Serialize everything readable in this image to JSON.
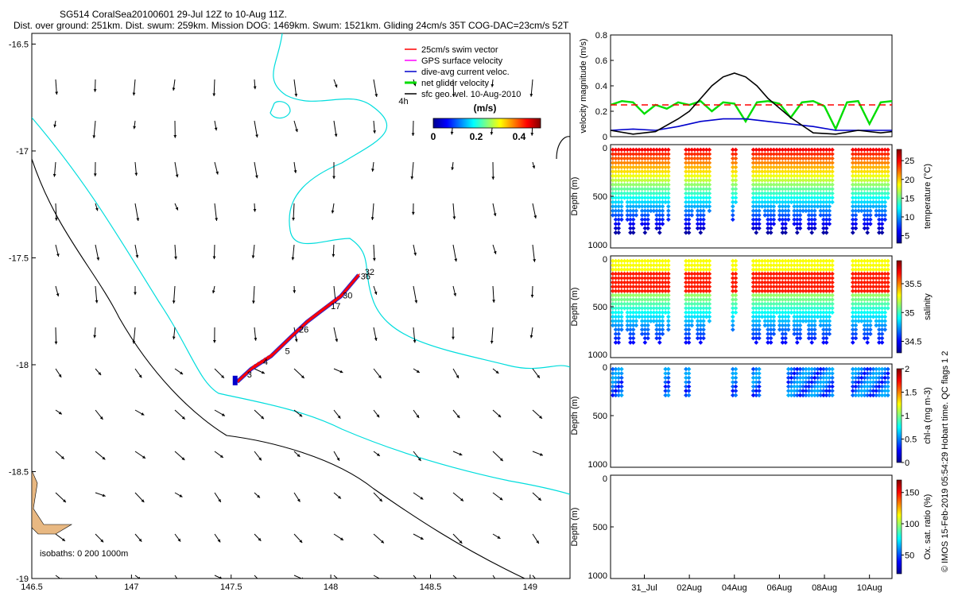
{
  "header": {
    "line1": "SG514 CoralSea20100601 29-Jul 12Z to 10-Aug 11Z.",
    "line2": "Dist. over ground: 251km. Dist. swum: 259km. Mission DOG: 1469km. Swum: 1521km. Gliding 24cm/s 35T COG-DAC=23cm/s 52T"
  },
  "side_text": "© IMOS 15-Feb-2019 05:54:29 Hobart time. QC flags 1  2",
  "colors": {
    "swim": "#ff0000",
    "gps": "#ff00ff",
    "dac": "#0000cc",
    "net": "#00dd00",
    "sfc": "#000000",
    "isobath200": "#00dddd",
    "isobath1000": "#000000",
    "land": "#e8b882"
  },
  "chart_data": [
    {
      "type": "map",
      "x_ticks": [
        146.5,
        147,
        147.5,
        148,
        148.5,
        149
      ],
      "x_tick_labels": [
        "146.5",
        "147",
        "147.5",
        "148",
        "148.5",
        "149"
      ],
      "y_ticks": [
        -16.5,
        -17,
        -17.5,
        -18,
        -18.5,
        -19
      ],
      "y_tick_labels": [
        "-16.5",
        "-17",
        "-17.5",
        "-18",
        "-18.5",
        "-19"
      ],
      "xlim": [
        146.5,
        149.2
      ],
      "ylim": [
        -19,
        -16.45
      ],
      "legend": [
        {
          "label": "25cm/s swim vector",
          "color": "#ff0000"
        },
        {
          "label": "GPS surface velocity",
          "color": "#ff00ff"
        },
        {
          "label": "dive-avg current veloc.",
          "color": "#0000cc"
        },
        {
          "label": "net glider velocity",
          "color": "#00dd00"
        },
        {
          "label": "sfc geo. vel. 10-Aug-2010",
          "color": "#000000"
        }
      ],
      "legend_placement": "top-right",
      "colorbar": {
        "title": "(m/s)",
        "ticks": [
          "0",
          "0.2",
          "0.4"
        ],
        "range": [
          0,
          0.5
        ]
      },
      "isobath_note": "isobaths: 0   200  1000m",
      "track": [
        [
          147.53,
          -18.08
        ],
        [
          147.6,
          -18.02
        ],
        [
          147.7,
          -17.96
        ],
        [
          147.8,
          -17.87
        ],
        [
          147.88,
          -17.8
        ],
        [
          147.95,
          -17.75
        ],
        [
          148.05,
          -17.68
        ],
        [
          148.14,
          -17.58
        ]
      ],
      "track_labels": [
        {
          "text": "3",
          "lon": 147.58,
          "lat": -18.06
        },
        {
          "text": "4",
          "lon": 147.66,
          "lat": -18.0
        },
        {
          "text": "5",
          "lon": 147.77,
          "lat": -17.95
        },
        {
          "text": "26",
          "lon": 147.84,
          "lat": -17.85
        },
        {
          "text": "17",
          "lon": 148.0,
          "lat": -17.74
        },
        {
          "text": "30",
          "lon": 148.06,
          "lat": -17.69
        },
        {
          "text": "36",
          "lon": 148.15,
          "lat": -17.6
        },
        {
          "text": "32",
          "lon": 148.17,
          "lat": -17.58
        },
        {
          "text": "4h",
          "lon": 148.34,
          "lat": -16.78
        }
      ]
    },
    {
      "type": "line",
      "ylabel": "velocity magnitude (m/s)",
      "ylim": [
        0,
        0.8
      ],
      "y_ticks": [
        "0",
        "0.2",
        "0.4",
        "0.6",
        "0.8"
      ],
      "series": [
        {
          "color": "#00dd00",
          "x": [
            0,
            0.5,
            1,
            1.5,
            2,
            2.5,
            3,
            3.5,
            4,
            4.5,
            5,
            5.5,
            6,
            6.5,
            7,
            7.5,
            8,
            8.5,
            9,
            9.5,
            10,
            10.5,
            11,
            11.5,
            12,
            12.5
          ],
          "values": [
            0.25,
            0.28,
            0.27,
            0.18,
            0.25,
            0.22,
            0.27,
            0.25,
            0.28,
            0.2,
            0.27,
            0.26,
            0.12,
            0.27,
            0.28,
            0.26,
            0.15,
            0.27,
            0.28,
            0.24,
            0.06,
            0.27,
            0.28,
            0.1,
            0.27,
            0.28
          ]
        },
        {
          "color": "#ff0000",
          "x": [
            0,
            2,
            2.2,
            4,
            4.2,
            6,
            6.2,
            8,
            8.2,
            10,
            10.2,
            12.5
          ],
          "values": [
            0.25,
            0.25,
            0.25,
            0.25,
            0.25,
            0.25,
            0.25,
            0.25,
            0.25,
            0.25,
            0.25,
            0.25
          ]
        },
        {
          "color": "#0000cc",
          "x": [
            0,
            1,
            2,
            3,
            4,
            5,
            6,
            7,
            8,
            9,
            10,
            11,
            12,
            12.5
          ],
          "values": [
            0.05,
            0.06,
            0.05,
            0.08,
            0.12,
            0.14,
            0.14,
            0.12,
            0.1,
            0.08,
            0.05,
            0.05,
            0.05,
            0.05
          ]
        },
        {
          "color": "#000000",
          "x": [
            0,
            1,
            2,
            3,
            3.5,
            4,
            4.5,
            5,
            5.5,
            6,
            6.5,
            7,
            8,
            9,
            10,
            11,
            12,
            12.5
          ],
          "values": [
            0.05,
            0.02,
            0.04,
            0.14,
            0.2,
            0.3,
            0.4,
            0.47,
            0.5,
            0.47,
            0.4,
            0.3,
            0.15,
            0.03,
            0.02,
            0.05,
            0.03,
            0.04
          ]
        }
      ]
    },
    {
      "type": "scatter",
      "ylabel": "Depth (m)",
      "cblabel": "temperature (°C)",
      "y_ticks": [
        "0",
        "500",
        "1000"
      ],
      "cb_ticks": [
        "25",
        "20",
        "15",
        "10",
        "5"
      ],
      "cb_range": [
        3,
        28
      ]
    },
    {
      "type": "scatter",
      "ylabel": "Depth (m)",
      "cblabel": "salinity",
      "y_ticks": [
        "0",
        "500",
        "1000"
      ],
      "cb_ticks": [
        "35.5",
        "35",
        "34.5"
      ],
      "cb_range": [
        34.3,
        35.9
      ]
    },
    {
      "type": "scatter",
      "ylabel": "Depth (m)",
      "cblabel": "chl-a (mg m-3)",
      "y_ticks": [
        "0",
        "500",
        "1000"
      ],
      "cb_ticks": [
        "2",
        "1.5",
        "1",
        "0.5",
        "0"
      ],
      "cb_range": [
        0,
        2
      ]
    },
    {
      "type": "scatter",
      "ylabel": "Depth (m)",
      "cblabel": "Ox. sat. ratio (%)",
      "y_ticks": [
        "0",
        "500",
        "1000"
      ],
      "cb_ticks": [
        "150",
        "100",
        "50"
      ],
      "cb_range": [
        20,
        170
      ]
    }
  ],
  "time_axis": {
    "tick_labels": [
      "31_Jul",
      "02Aug",
      "04Aug",
      "06Aug",
      "08Aug",
      "10Aug"
    ]
  }
}
